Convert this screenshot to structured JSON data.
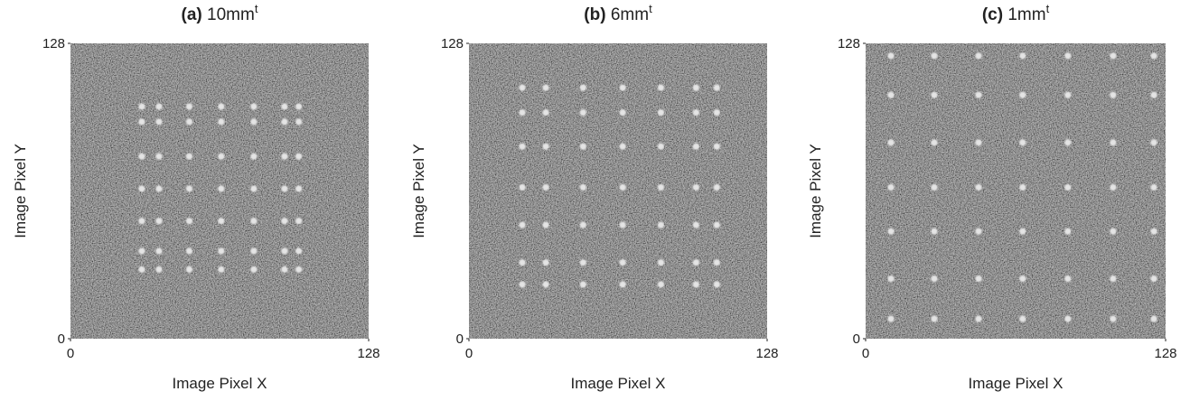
{
  "chart_data": [
    {
      "type": "image",
      "title_label": "(a)",
      "title": "10mm",
      "title_sup": "t",
      "xlabel": "Image Pixel X",
      "ylabel": "Image Pixel Y",
      "xlim": [
        0,
        128
      ],
      "ylim": [
        0,
        128
      ],
      "xticks": [
        0,
        128
      ],
      "yticks": [
        0,
        128
      ],
      "spot_x": [
        30.6,
        38,
        51,
        64.7,
        78.7,
        91.9,
        98
      ],
      "spot_y": [
        100.6,
        94,
        79,
        65,
        51,
        38,
        30
      ],
      "color": "#e4e4e4"
    },
    {
      "type": "image",
      "title_label": "(b)",
      "title": "6mm",
      "title_sup": "t",
      "xlabel": "Image Pixel X",
      "ylabel": "Image Pixel Y",
      "xlim": [
        0,
        128
      ],
      "ylim": [
        0,
        128
      ],
      "xticks": [
        0,
        128
      ],
      "yticks": [
        0,
        128
      ],
      "spot_x": [
        22.9,
        33,
        49,
        66,
        82.4,
        97.5,
        106.4
      ],
      "spot_y": [
        108.8,
        98,
        83.3,
        65.6,
        49.3,
        33,
        23.5
      ],
      "color": "#e4e4e4"
    },
    {
      "type": "image",
      "title_label": "(c)",
      "title": "1mm",
      "title_sup": "t",
      "xlabel": "Image Pixel X",
      "ylabel": "Image Pixel Y",
      "xlim": [
        0,
        128
      ],
      "ylim": [
        0,
        128
      ],
      "xticks": [
        0,
        128
      ],
      "yticks": [
        0,
        128
      ],
      "spot_x": [
        10.8,
        29.3,
        48.2,
        67,
        86.3,
        105.6,
        123
      ],
      "spot_y": [
        122.6,
        105.6,
        85,
        65.6,
        46.5,
        26,
        8.6
      ],
      "color": "#e4e4e4"
    }
  ]
}
